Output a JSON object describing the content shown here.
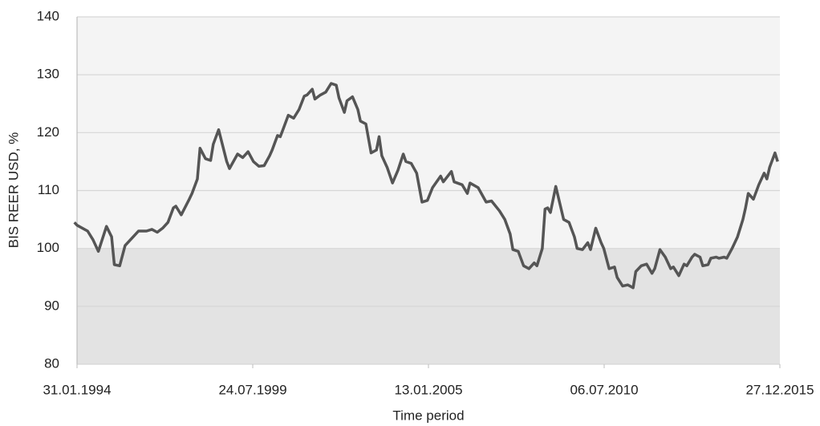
{
  "chart_data": {
    "type": "line",
    "x_label": "Time period",
    "y_label": "BIS REER USD, %",
    "ylim": [
      80,
      140
    ],
    "yticks": [
      80,
      90,
      100,
      110,
      120,
      130,
      140
    ],
    "xlim": [
      "1994-01-31",
      "2015-12-27"
    ],
    "xticks": [
      {
        "value": "1994-01-31",
        "label": "31.01.1994"
      },
      {
        "value": "1999-07-24",
        "label": "24.07.1999"
      },
      {
        "value": "2005-01-13",
        "label": "13.01.2005"
      },
      {
        "value": "2010-07-06",
        "label": "06.07.2010"
      },
      {
        "value": "2015-12-27",
        "label": "27.12.2015"
      }
    ],
    "grid": true,
    "bands": [
      {
        "from": 80,
        "to": 100,
        "color": "#e3e3e3"
      },
      {
        "from": 100,
        "to": 140,
        "color": "#f4f4f4"
      }
    ],
    "x": [
      "1994-01",
      "1994-02",
      "1994-06",
      "1994-08",
      "1994-10",
      "1995-01",
      "1995-03",
      "1995-04",
      "1995-06",
      "1995-08",
      "1995-11",
      "1996-01",
      "1996-04",
      "1996-06",
      "1996-08",
      "1996-10",
      "1996-12",
      "1997-02",
      "1997-03",
      "1997-05",
      "1997-08",
      "1997-09",
      "1997-11",
      "1997-12",
      "1998-02",
      "1998-04",
      "1998-05",
      "1998-07",
      "1998-10",
      "1998-11",
      "1999-02",
      "1999-04",
      "1999-06",
      "1999-08",
      "1999-10",
      "1999-12",
      "2000-02",
      "2000-03",
      "2000-05",
      "2000-06",
      "2000-07",
      "2000-09",
      "2000-11",
      "2001-01",
      "2001-03",
      "2001-04",
      "2001-06",
      "2001-07",
      "2001-09",
      "2001-11",
      "2002-01",
      "2002-03",
      "2002-04",
      "2002-06",
      "2002-07",
      "2002-09",
      "2002-11",
      "2002-12",
      "2003-02",
      "2003-04",
      "2003-06",
      "2003-07",
      "2003-08",
      "2003-10",
      "2003-12",
      "2004-02",
      "2004-04",
      "2004-05",
      "2004-07",
      "2004-09",
      "2004-11",
      "2005-01",
      "2005-03",
      "2005-06",
      "2005-07",
      "2005-10",
      "2005-11",
      "2006-02",
      "2006-04",
      "2006-05",
      "2006-08",
      "2006-11",
      "2007-01",
      "2007-04",
      "2007-06",
      "2007-08",
      "2007-09",
      "2007-11",
      "2008-01",
      "2008-03",
      "2008-05",
      "2008-06",
      "2008-08",
      "2008-09",
      "2008-10",
      "2008-11",
      "2009-01",
      "2009-04",
      "2009-06",
      "2009-08",
      "2009-09",
      "2009-11",
      "2010-01",
      "2010-02",
      "2010-04",
      "2010-06",
      "2010-07",
      "2010-09",
      "2010-11",
      "2010-12",
      "2011-02",
      "2011-04",
      "2011-06",
      "2011-07",
      "2011-09",
      "2011-11",
      "2012-01",
      "2012-02",
      "2012-04",
      "2012-06",
      "2012-08",
      "2012-09",
      "2012-11",
      "2013-01",
      "2013-02",
      "2013-04",
      "2013-05",
      "2013-07",
      "2013-08",
      "2013-10",
      "2013-11",
      "2014-01",
      "2014-02",
      "2014-04",
      "2014-05",
      "2014-07",
      "2014-09",
      "2014-11",
      "2014-12",
      "2015-01",
      "2015-03",
      "2015-05",
      "2015-07",
      "2015-08",
      "2015-09",
      "2015-11",
      "2015-12"
    ],
    "series": [
      {
        "color": "#555555",
        "values": [
          104.5,
          104,
          103,
          101.5,
          99.5,
          103.8,
          102,
          97.2,
          97,
          100.5,
          102,
          103,
          103,
          103.3,
          102.8,
          103.5,
          104.5,
          107,
          107.3,
          105.8,
          108.5,
          109.5,
          112,
          117.3,
          115.5,
          115.2,
          118,
          120.5,
          115,
          113.8,
          116.3,
          115.7,
          116.7,
          115,
          114.2,
          114.3,
          116,
          117,
          119.5,
          119.3,
          120.5,
          123,
          122.5,
          124,
          126.3,
          126.5,
          127.5,
          125.8,
          126.5,
          127,
          128.5,
          128.2,
          126,
          123.5,
          125.5,
          126.2,
          124,
          122,
          121.5,
          116.5,
          117,
          119.3,
          116,
          114,
          111.3,
          113.5,
          116.3,
          115,
          114.7,
          113,
          108,
          108.3,
          110.5,
          112.5,
          111.5,
          113.3,
          111.5,
          111,
          109.5,
          111.3,
          110.5,
          108,
          108.2,
          106.5,
          105,
          102.5,
          99.8,
          99.5,
          97,
          96.5,
          97.5,
          97,
          100,
          106.8,
          107,
          106.2,
          110.7,
          105,
          104.5,
          102,
          100,
          99.8,
          101,
          99.8,
          103.5,
          101,
          100,
          96.5,
          96.8,
          95,
          93.5,
          93.7,
          93.2,
          96,
          97,
          97.3,
          95.7,
          96.5,
          99.8,
          98.5,
          96.5,
          96.8,
          95.3,
          97.3,
          97,
          98.5,
          99,
          98.5,
          97,
          97.2,
          98.3,
          98.5,
          98.3,
          98.5,
          98.3,
          100,
          102,
          105,
          107,
          109.5,
          108.5,
          111,
          113,
          112,
          114,
          116.5,
          115
        ]
      }
    ]
  }
}
